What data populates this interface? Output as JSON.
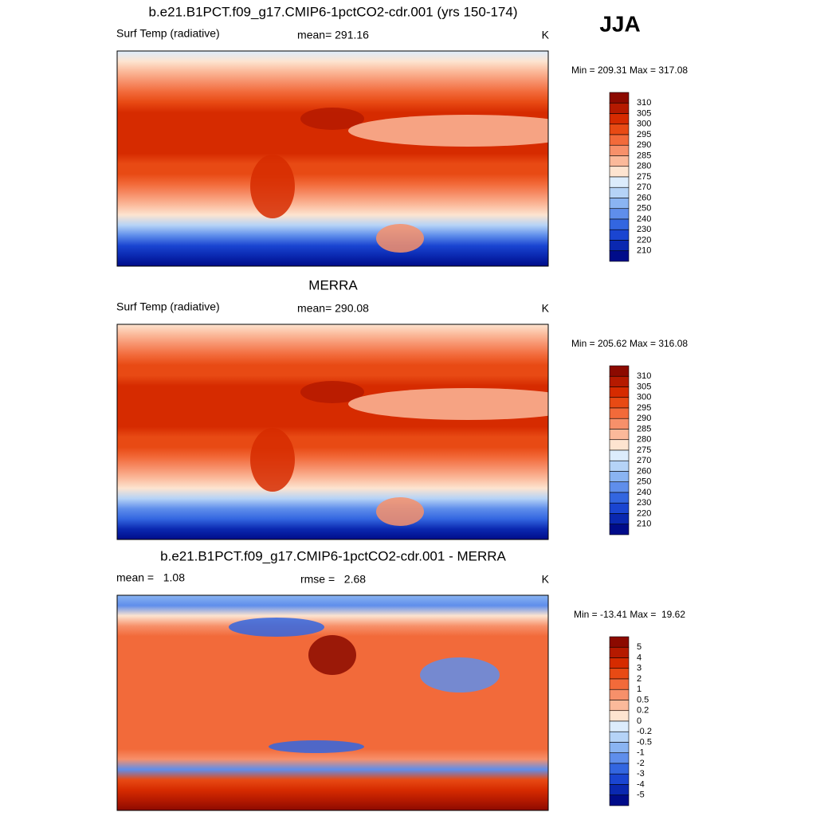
{
  "season": "JJA",
  "panels": [
    {
      "title": "b.e21.B1PCT.f09_g17.CMIP6-1pctCO2-cdr.001 (yrs 150-174)",
      "left": "Surf Temp (radiative)",
      "center": "mean= 291.16",
      "units": "K",
      "minmax": "Min = 209.31 Max = 317.08",
      "colorbar": {
        "labels": [
          "310",
          "305",
          "300",
          "295",
          "290",
          "285",
          "280",
          "275",
          "270",
          "260",
          "250",
          "240",
          "230",
          "220",
          "210"
        ],
        "colors": [
          "#8c0a00",
          "#b51a00",
          "#d62b00",
          "#e84a14",
          "#f26a3a",
          "#f7906a",
          "#fbb99a",
          "#fde4d0",
          "#dcecfc",
          "#b5d3f7",
          "#8ab4f2",
          "#5f8eeb",
          "#3366e0",
          "#1a45d1",
          "#0a28b0",
          "#000c8a"
        ]
      }
    },
    {
      "title": "MERRA",
      "left": "Surf Temp (radiative)",
      "center": "mean= 290.08",
      "units": "K",
      "minmax": "Min = 205.62 Max = 316.08",
      "colorbar": {
        "labels": [
          "310",
          "305",
          "300",
          "295",
          "290",
          "285",
          "280",
          "275",
          "270",
          "260",
          "250",
          "240",
          "230",
          "220",
          "210"
        ],
        "colors": [
          "#8c0a00",
          "#b51a00",
          "#d62b00",
          "#e84a14",
          "#f26a3a",
          "#f7906a",
          "#fbb99a",
          "#fde4d0",
          "#dcecfc",
          "#b5d3f7",
          "#8ab4f2",
          "#5f8eeb",
          "#3366e0",
          "#1a45d1",
          "#0a28b0",
          "#000c8a"
        ]
      }
    },
    {
      "title": "b.e21.B1PCT.f09_g17.CMIP6-1pctCO2-cdr.001 - MERRA",
      "left": "mean =   1.08",
      "center": "rmse =   2.68",
      "units": "K",
      "minmax": "Min = -13.41 Max =  19.62",
      "colorbar": {
        "labels": [
          "5",
          "4",
          "3",
          "2",
          "1",
          "0.5",
          "0.2",
          "0",
          "-0.2",
          "-0.5",
          "-1",
          "-2",
          "-3",
          "-4",
          "-5"
        ],
        "colors": [
          "#8c0a00",
          "#b51a00",
          "#d62b00",
          "#e84a14",
          "#f26a3a",
          "#f7906a",
          "#fbb99a",
          "#fde4d0",
          "#dcecfc",
          "#b5d3f7",
          "#8ab4f2",
          "#5f8eeb",
          "#3366e0",
          "#1a45d1",
          "#0a28b0",
          "#000c8a"
        ]
      }
    }
  ]
}
